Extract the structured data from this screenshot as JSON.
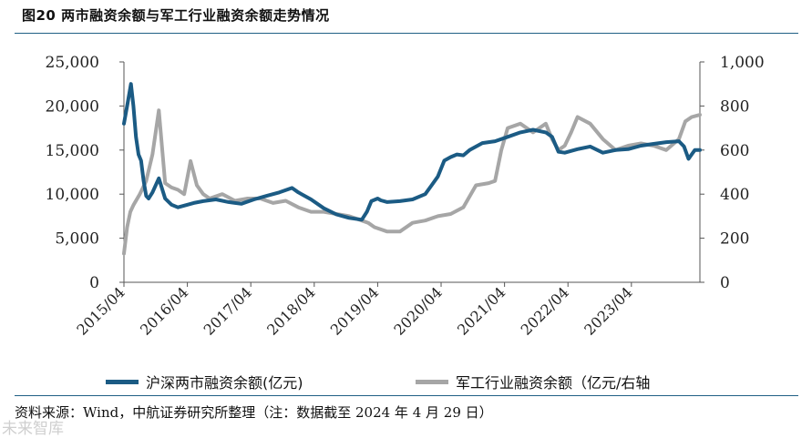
{
  "header": {
    "title": "图20 两市融资余额与军工行业融资余额走势情况"
  },
  "source": {
    "text": "资料来源：Wind，中航证券研究所整理（注：数据截至 2024 年 4 月 29 日）"
  },
  "watermark": {
    "text": "未来智库"
  },
  "colors": {
    "left_series": "#1b5b84",
    "right_series": "#a6a6a6",
    "rule": "#1f5f85"
  },
  "chart_data": {
    "type": "line",
    "title": "",
    "x_ticks": [
      "2015/04",
      "2016/04",
      "2017/04",
      "2018/04",
      "2019/04",
      "2020/04",
      "2021/04",
      "2022/04",
      "2023/04"
    ],
    "y_left": {
      "ticks": [
        "0",
        "5,000",
        "10,000",
        "15,000",
        "20,000",
        "25,000"
      ],
      "lim": [
        0,
        25000
      ]
    },
    "y_right": {
      "ticks": [
        "0",
        "200",
        "400",
        "600",
        "800",
        "1,000"
      ],
      "lim": [
        0,
        1000
      ]
    },
    "legend_position": "bottom",
    "series": [
      {
        "name": "沪深两市融资余额(亿元)",
        "axis": "left",
        "x": [
          2015.25,
          2015.3,
          2015.36,
          2015.4,
          2015.44,
          2015.48,
          2015.52,
          2015.56,
          2015.6,
          2015.64,
          2015.7,
          2015.8,
          2015.9,
          2016.0,
          2016.1,
          2016.2,
          2016.35,
          2016.5,
          2016.7,
          2016.9,
          2017.1,
          2017.3,
          2017.5,
          2017.7,
          2017.9,
          2018.0,
          2018.05,
          2018.2,
          2018.4,
          2018.6,
          2018.8,
          2019.0,
          2019.08,
          2019.15,
          2019.25,
          2019.3,
          2019.4,
          2019.6,
          2019.8,
          2020.0,
          2020.1,
          2020.2,
          2020.3,
          2020.4,
          2020.5,
          2020.6,
          2020.7,
          2020.9,
          2021.1,
          2021.3,
          2021.5,
          2021.7,
          2021.9,
          2022.0,
          2022.1,
          2022.2,
          2022.4,
          2022.6,
          2022.8,
          2023.0,
          2023.2,
          2023.4,
          2023.6,
          2023.8,
          2024.0,
          2024.08,
          2024.15,
          2024.25,
          2024.33
        ],
        "y": [
          18000,
          20000,
          22500,
          20000,
          16500,
          14500,
          13800,
          11500,
          9800,
          9500,
          10200,
          11800,
          9500,
          8800,
          8500,
          8700,
          9000,
          9200,
          9400,
          9100,
          8900,
          9400,
          9800,
          10200,
          10700,
          10200,
          10000,
          9400,
          8400,
          7700,
          7300,
          7100,
          8000,
          9200,
          9500,
          9300,
          9100,
          9200,
          9400,
          10000,
          11000,
          12000,
          13800,
          14200,
          14500,
          14400,
          15000,
          15800,
          16000,
          16500,
          17000,
          17300,
          17000,
          16500,
          14800,
          14700,
          15100,
          15400,
          14700,
          15000,
          15100,
          15500,
          15700,
          15900,
          16000,
          15400,
          14000,
          15000,
          15000
        ]
      },
      {
        "name": "军工行业融资余额（亿元/右轴",
        "axis": "right",
        "x": [
          2015.25,
          2015.3,
          2015.35,
          2015.4,
          2015.5,
          2015.6,
          2015.7,
          2015.8,
          2015.9,
          2016.0,
          2016.1,
          2016.2,
          2016.3,
          2016.4,
          2016.5,
          2016.6,
          2016.8,
          2017.0,
          2017.2,
          2017.4,
          2017.6,
          2017.8,
          2018.0,
          2018.2,
          2018.4,
          2018.6,
          2018.8,
          2019.0,
          2019.1,
          2019.2,
          2019.4,
          2019.6,
          2019.8,
          2020.0,
          2020.2,
          2020.4,
          2020.6,
          2020.8,
          2021.0,
          2021.1,
          2021.2,
          2021.3,
          2021.5,
          2021.7,
          2021.9,
          2022.0,
          2022.1,
          2022.2,
          2022.3,
          2022.4,
          2022.6,
          2022.8,
          2023.0,
          2023.2,
          2023.4,
          2023.6,
          2023.8,
          2024.0,
          2024.1,
          2024.2,
          2024.33
        ],
        "y": [
          130,
          250,
          320,
          350,
          400,
          460,
          580,
          780,
          450,
          430,
          420,
          400,
          550,
          440,
          400,
          380,
          400,
          370,
          380,
          380,
          360,
          370,
          340,
          320,
          320,
          310,
          300,
          280,
          270,
          250,
          230,
          230,
          270,
          280,
          300,
          310,
          340,
          440,
          450,
          460,
          600,
          700,
          720,
          680,
          720,
          650,
          600,
          620,
          680,
          750,
          720,
          650,
          600,
          620,
          630,
          620,
          600,
          650,
          730,
          750,
          760
        ]
      }
    ]
  }
}
